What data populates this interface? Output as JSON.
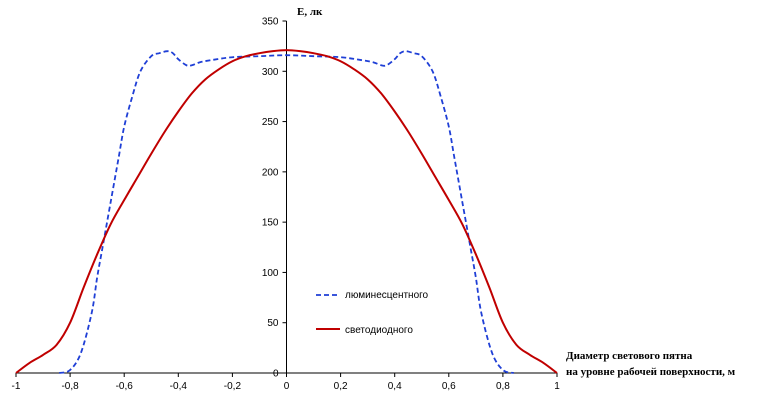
{
  "chart_data": {
    "type": "line",
    "title": "",
    "ylabel": "E, лк",
    "xlabel_lines": [
      "Диаметр светового пятна",
      "на уровне рабочей поверхности, м"
    ],
    "xlim": [
      -1,
      1
    ],
    "ylim": [
      0,
      350
    ],
    "x_ticks": [
      -1,
      -0.8,
      -0.6,
      -0.4,
      -0.2,
      0,
      0.2,
      0.4,
      0.6,
      0.8,
      1
    ],
    "x_tick_labels": [
      "-1",
      "-0,8",
      "-0,6",
      "-0,4",
      "-0,2",
      "0",
      "0,2",
      "0,4",
      "0,6",
      "0,8",
      "1"
    ],
    "y_ticks": [
      0,
      50,
      100,
      150,
      200,
      250,
      300,
      350
    ],
    "y_tick_labels": [
      "0",
      "50",
      "100",
      "150",
      "200",
      "250",
      "300",
      "350"
    ],
    "grid": false,
    "legend_position": "lower-right of center",
    "series": [
      {
        "name": "люминесцентного",
        "color": "#1f3fd6",
        "dash": "dashed",
        "x": [
          -0.84,
          -0.8,
          -0.76,
          -0.72,
          -0.7,
          -0.68,
          -0.65,
          -0.62,
          -0.6,
          -0.57,
          -0.54,
          -0.5,
          -0.47,
          -0.44,
          -0.42,
          -0.4,
          -0.37,
          -0.35,
          -0.32,
          -0.28,
          -0.2,
          -0.1,
          0,
          0.1,
          0.2,
          0.28,
          0.32,
          0.35,
          0.37,
          0.4,
          0.42,
          0.44,
          0.47,
          0.5,
          0.54,
          0.57,
          0.6,
          0.62,
          0.65,
          0.68,
          0.7,
          0.72,
          0.76,
          0.8,
          0.84
        ],
        "values": [
          0,
          3,
          20,
          60,
          95,
          125,
          170,
          215,
          245,
          275,
          300,
          315,
          318,
          320,
          318,
          312,
          306,
          306,
          309,
          311,
          314,
          315,
          316,
          315,
          314,
          311,
          309,
          306,
          306,
          312,
          318,
          320,
          318,
          315,
          300,
          275,
          245,
          215,
          170,
          125,
          95,
          60,
          20,
          3,
          0
        ]
      },
      {
        "name": "светодиодного",
        "color": "#c00000",
        "dash": "solid",
        "x": [
          -1,
          -0.95,
          -0.9,
          -0.85,
          -0.8,
          -0.75,
          -0.7,
          -0.65,
          -0.6,
          -0.55,
          -0.5,
          -0.45,
          -0.4,
          -0.35,
          -0.3,
          -0.25,
          -0.2,
          -0.15,
          -0.1,
          -0.05,
          0,
          0.05,
          0.1,
          0.15,
          0.2,
          0.25,
          0.3,
          0.35,
          0.4,
          0.45,
          0.5,
          0.55,
          0.6,
          0.65,
          0.7,
          0.75,
          0.8,
          0.85,
          0.9,
          0.95,
          1
        ],
        "values": [
          0,
          10,
          18,
          28,
          50,
          85,
          118,
          148,
          172,
          195,
          218,
          240,
          260,
          278,
          292,
          302,
          310,
          315,
          318,
          320,
          321,
          320,
          318,
          315,
          310,
          302,
          292,
          278,
          260,
          240,
          218,
          195,
          172,
          148,
          118,
          85,
          50,
          28,
          18,
          10,
          0
        ]
      }
    ]
  }
}
